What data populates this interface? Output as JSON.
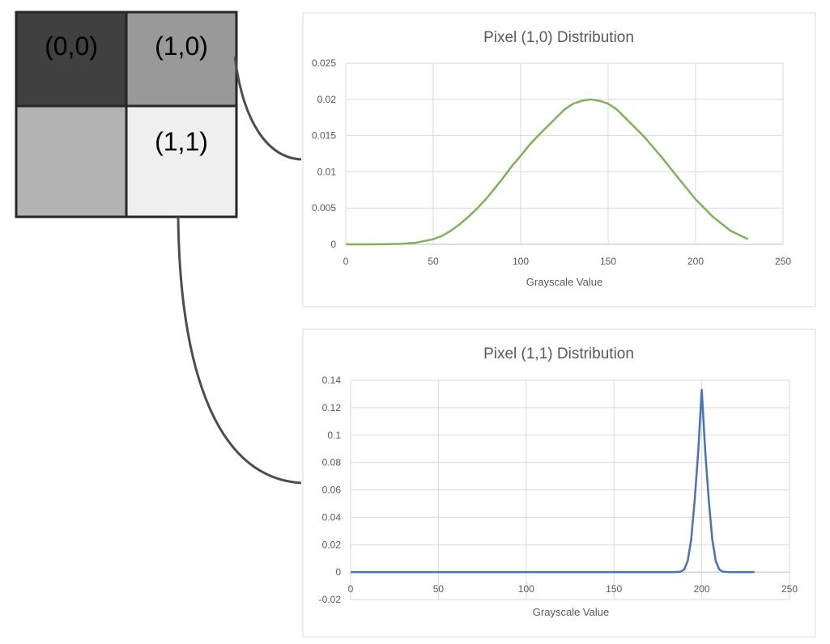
{
  "pixel_grid": {
    "cells": [
      {
        "label": "(0,0)",
        "fill": "#404040",
        "text_color": "#000000"
      },
      {
        "label": "(1,0)",
        "fill": "#999999",
        "text_color": "#000000"
      },
      {
        "label": "",
        "fill": "#b3b3b3",
        "text_color": "#000000"
      },
      {
        "label": "(1,1)",
        "fill": "#efefef",
        "text_color": "#000000"
      }
    ],
    "border_color": "#262626"
  },
  "colors": {
    "connector": "#4d4d4d",
    "grid": "#d9d9d9",
    "panel_border": "#d9d9d9"
  },
  "chart_data": [
    {
      "type": "line",
      "title": "Pixel (1,0) Distribution",
      "xlabel": "Grayscale Value",
      "ylabel": "",
      "xlim": [
        0,
        250
      ],
      "ylim": [
        0,
        0.025
      ],
      "x_ticks": [
        0,
        50,
        100,
        150,
        200,
        250
      ],
      "x_tick_labels": [
        "0",
        "50",
        "100",
        "150",
        "200",
        "250"
      ],
      "y_ticks": [
        0,
        0.005,
        0.01,
        0.015,
        0.02,
        0.025
      ],
      "y_tick_labels": [
        "0",
        "0.005",
        "0.01",
        "0.015",
        "0.02",
        "0.025"
      ],
      "grid": true,
      "color": "#7cb357",
      "x": [
        0,
        10,
        20,
        30,
        40,
        50,
        55,
        60,
        65,
        70,
        75,
        80,
        85,
        90,
        95,
        100,
        105,
        110,
        115,
        120,
        125,
        130,
        135,
        140,
        145,
        150,
        155,
        160,
        170,
        180,
        190,
        200,
        210,
        220,
        230
      ],
      "y": [
        1e-06,
        1e-06,
        9e-06,
        4.9e-05,
        0.000219,
        0.000707,
        0.001161,
        0.001867,
        0.002735,
        0.003773,
        0.004919,
        0.006209,
        0.007667,
        0.00918,
        0.0108,
        0.0122,
        0.0137,
        0.015,
        0.0162,
        0.0174,
        0.0186,
        0.0194,
        0.0198,
        0.02,
        0.0198,
        0.0194,
        0.0186,
        0.0174,
        0.015,
        0.0122,
        0.00918,
        0.006209,
        0.003773,
        0.001867,
        0.000707
      ]
    },
    {
      "type": "line",
      "title": "Pixel (1,1) Distribution",
      "xlabel": "Grayscale Value",
      "ylabel": "",
      "xlim": [
        0,
        250
      ],
      "ylim": [
        -0.02,
        0.14
      ],
      "x_ticks": [
        0,
        50,
        100,
        150,
        200,
        250
      ],
      "x_tick_labels": [
        "0",
        "50",
        "100",
        "150",
        "200",
        "250"
      ],
      "y_ticks": [
        -0.02,
        0,
        0.02,
        0.04,
        0.06,
        0.08,
        0.1,
        0.12,
        0.14
      ],
      "y_tick_labels": [
        "-0.02",
        "0",
        "0.02",
        "0.04",
        "0.06",
        "0.08",
        "0.1",
        "0.12",
        "0.14"
      ],
      "grid": true,
      "color": "#4472c4",
      "x": [
        0,
        50,
        100,
        150,
        180,
        185,
        188,
        190,
        192,
        194,
        196,
        198,
        200,
        202,
        204,
        206,
        208,
        210,
        212,
        215,
        220,
        230
      ],
      "y": [
        0,
        0,
        0,
        0,
        0,
        1e-05,
        0.0003,
        0.0019,
        0.0081,
        0.0239,
        0.0527,
        0.088,
        0.133,
        0.088,
        0.0527,
        0.0239,
        0.0081,
        0.0019,
        0.0003,
        1e-05,
        0,
        0
      ]
    }
  ]
}
